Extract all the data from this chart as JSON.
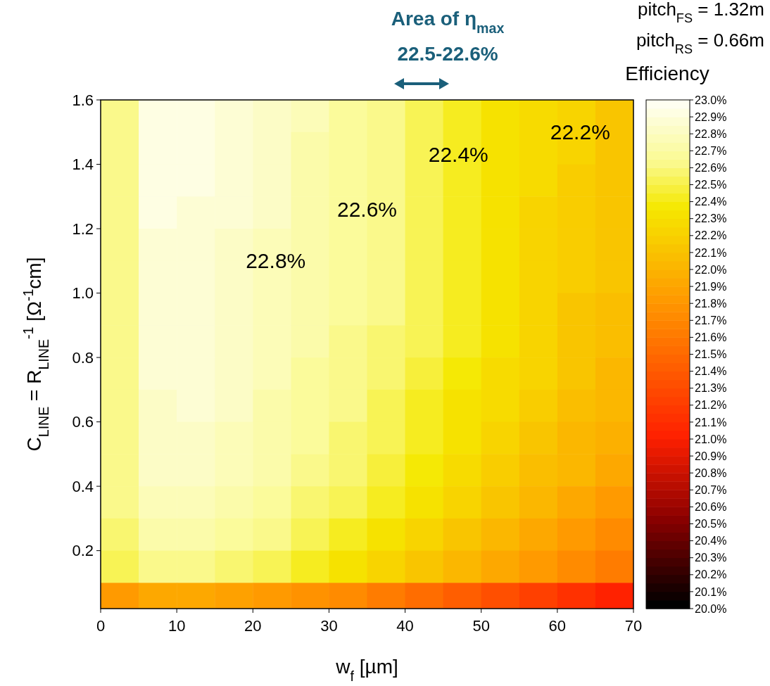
{
  "chart_data": {
    "type": "heatmap",
    "xlabel": "w$_{f}$ [µm]",
    "ylabel": "C$_{LINE}$ = R$_{LINE}$$^{-1}$ [Ω$^{-1}$cm]",
    "clabel": "Efficiency",
    "x": [
      2.5,
      7.5,
      12.5,
      17.5,
      22.5,
      27.5,
      32.5,
      37.5,
      42.5,
      47.5,
      52.5,
      57.5,
      62.5,
      67.5
    ],
    "y": [
      1.55,
      1.45,
      1.35,
      1.25,
      1.15,
      1.05,
      0.95,
      0.85,
      0.75,
      0.65,
      0.55,
      0.45,
      0.35,
      0.25,
      0.15,
      0.05
    ],
    "xlim": [
      0,
      70
    ],
    "xticks": [
      0,
      10,
      20,
      30,
      40,
      50,
      60,
      70
    ],
    "ylim": [
      0.02,
      1.6
    ],
    "yticks": [
      0.2,
      0.4,
      0.6,
      0.8,
      {
        "value": 1.0,
        "label": "1.0"
      },
      1.2,
      1.4,
      1.6
    ],
    "cells": [
      [
        22.6,
        22.9,
        22.9,
        22.85,
        22.8,
        22.75,
        22.65,
        22.6,
        22.5,
        22.4,
        22.3,
        22.25,
        22.2,
        22.1
      ],
      [
        22.6,
        22.9,
        22.9,
        22.85,
        22.8,
        22.7,
        22.65,
        22.6,
        22.5,
        22.4,
        22.3,
        22.25,
        22.2,
        22.1
      ],
      [
        22.6,
        22.9,
        22.9,
        22.85,
        22.8,
        22.7,
        22.65,
        22.6,
        22.5,
        22.4,
        22.3,
        22.25,
        22.15,
        22.1
      ],
      [
        22.6,
        22.9,
        22.85,
        22.85,
        22.8,
        22.7,
        22.65,
        22.6,
        22.5,
        22.4,
        22.3,
        22.2,
        22.15,
        22.1
      ],
      [
        22.6,
        22.85,
        22.85,
        22.8,
        22.75,
        22.7,
        22.65,
        22.6,
        22.5,
        22.4,
        22.3,
        22.2,
        22.15,
        22.1
      ],
      [
        22.6,
        22.85,
        22.85,
        22.8,
        22.75,
        22.7,
        22.65,
        22.6,
        22.5,
        22.4,
        22.3,
        22.2,
        22.15,
        22.1
      ],
      [
        22.6,
        22.85,
        22.85,
        22.8,
        22.75,
        22.7,
        22.65,
        22.6,
        22.5,
        22.4,
        22.3,
        22.2,
        22.1,
        22.05
      ],
      [
        22.6,
        22.85,
        22.85,
        22.8,
        22.75,
        22.7,
        22.6,
        22.55,
        22.5,
        22.4,
        22.3,
        22.2,
        22.1,
        22.05
      ],
      [
        22.6,
        22.85,
        22.85,
        22.8,
        22.75,
        22.65,
        22.6,
        22.55,
        22.45,
        22.35,
        22.25,
        22.2,
        22.1,
        22.0
      ],
      [
        22.6,
        22.8,
        22.85,
        22.8,
        22.7,
        22.65,
        22.6,
        22.5,
        22.4,
        22.3,
        22.25,
        22.15,
        22.05,
        22.0
      ],
      [
        22.6,
        22.8,
        22.8,
        22.75,
        22.7,
        22.65,
        22.55,
        22.5,
        22.4,
        22.3,
        22.2,
        22.1,
        22.0,
        21.95
      ],
      [
        22.6,
        22.8,
        22.8,
        22.75,
        22.7,
        22.6,
        22.55,
        22.45,
        22.35,
        22.25,
        22.15,
        22.05,
        22.0,
        21.9
      ],
      [
        22.6,
        22.75,
        22.75,
        22.7,
        22.65,
        22.55,
        22.5,
        22.4,
        22.3,
        22.2,
        22.1,
        22.0,
        21.9,
        21.8
      ],
      [
        22.55,
        22.7,
        22.7,
        22.65,
        22.6,
        22.5,
        22.4,
        22.3,
        22.2,
        22.1,
        22.0,
        21.9,
        21.8,
        21.7
      ],
      [
        22.5,
        22.6,
        22.6,
        22.55,
        22.5,
        22.4,
        22.3,
        22.2,
        22.1,
        22.0,
        21.9,
        21.8,
        21.7,
        21.6
      ],
      [
        21.8,
        21.9,
        21.9,
        21.85,
        21.8,
        21.75,
        21.7,
        21.6,
        21.5,
        21.4,
        21.3,
        21.2,
        21.1,
        21.0
      ]
    ],
    "clim": [
      20,
      23
    ],
    "cticks": [
      {
        "value": 20.0,
        "label": "20.0%"
      },
      {
        "value": 20.1,
        "label": "20.1%"
      },
      {
        "value": 20.2,
        "label": "20.2%"
      },
      {
        "value": 20.3,
        "label": "20.3%"
      },
      {
        "value": 20.4,
        "label": "20.4%"
      },
      {
        "value": 20.5,
        "label": "20.5%"
      },
      {
        "value": 20.6,
        "label": "20.6%"
      },
      {
        "value": 20.7,
        "label": "20.7%"
      },
      {
        "value": 20.8,
        "label": "20.8%"
      },
      {
        "value": 20.9,
        "label": "20.9%"
      },
      {
        "value": 21.0,
        "label": "21.0%"
      },
      {
        "value": 21.1,
        "label": "21.1%"
      },
      {
        "value": 21.2,
        "label": "21.2%"
      },
      {
        "value": 21.3,
        "label": "21.3%"
      },
      {
        "value": 21.4,
        "label": "21.4%"
      },
      {
        "value": 21.5,
        "label": "21.5%"
      },
      {
        "value": 21.6,
        "label": "21.6%"
      },
      {
        "value": 21.7,
        "label": "21.7%"
      },
      {
        "value": 21.8,
        "label": "21.8%"
      },
      {
        "value": 21.9,
        "label": "21.9%"
      },
      {
        "value": 22.0,
        "label": "22.0%"
      },
      {
        "value": 22.1,
        "label": "22.1%"
      },
      {
        "value": 22.2,
        "label": "22.2%"
      },
      {
        "value": 22.3,
        "label": "22.3%"
      },
      {
        "value": 22.4,
        "label": "22.4%"
      },
      {
        "value": 22.5,
        "label": "22.5%"
      },
      {
        "value": 22.6,
        "label": "22.6%"
      },
      {
        "value": 22.7,
        "label": "22.7%"
      },
      {
        "value": 22.8,
        "label": "22.8%"
      },
      {
        "value": 22.9,
        "label": "22.9%"
      },
      {
        "value": 23.0,
        "label": "23.0%"
      }
    ],
    "annotations": [
      "22.8%",
      "22.6%",
      "22.4%",
      "22.2%",
      "Area of η$_{max}$",
      "22.5-22.6%",
      "pitch$_{FS}$ = 1.32m",
      "pitch$_{RS}$ = 0.66m"
    ]
  }
}
